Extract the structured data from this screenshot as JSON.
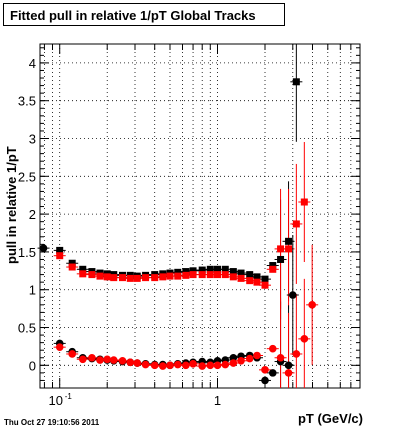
{
  "chart_data": {
    "type": "scatter",
    "title": "Fitted pull in relative 1/pT  Global Tracks",
    "xlabel": "pT (GeV/c)",
    "ylabel": "pull in relative 1/pT",
    "x_scale": "log",
    "xlim": [
      0.075,
      8.0
    ],
    "ylim": [
      -0.3,
      4.25
    ],
    "x_tick_labels": [
      {
        "value": 0.1,
        "base": "10",
        "exp": "-1"
      },
      {
        "value": 1,
        "base": "1",
        "exp": ""
      }
    ],
    "y_tick_labels": [
      "0",
      "0.5",
      "1",
      "1.5",
      "2",
      "2.5",
      "3",
      "3.5",
      "4"
    ],
    "y_ticks": [
      0,
      0.5,
      1,
      1.5,
      2,
      2.5,
      3,
      3.5,
      4
    ],
    "grid": true,
    "series": [
      {
        "marker": "square",
        "color": "#000000",
        "points": [
          [
            0.1,
            1.52
          ],
          [
            0.12,
            1.35
          ],
          [
            0.14,
            1.27
          ],
          [
            0.16,
            1.24
          ],
          [
            0.18,
            1.22
          ],
          [
            0.2,
            1.21
          ],
          [
            0.22,
            1.2
          ],
          [
            0.25,
            1.19
          ],
          [
            0.28,
            1.19
          ],
          [
            0.31,
            1.18
          ],
          [
            0.35,
            1.19
          ],
          [
            0.4,
            1.2
          ],
          [
            0.45,
            1.21
          ],
          [
            0.5,
            1.22
          ],
          [
            0.56,
            1.23
          ],
          [
            0.63,
            1.24
          ],
          [
            0.7,
            1.25
          ],
          [
            0.8,
            1.26
          ],
          [
            0.9,
            1.27
          ],
          [
            1.0,
            1.27
          ],
          [
            1.12,
            1.27
          ],
          [
            1.26,
            1.24
          ],
          [
            1.41,
            1.22
          ],
          [
            1.6,
            1.2
          ],
          [
            1.78,
            1.17
          ],
          [
            2.0,
            1.14
          ],
          [
            2.24,
            1.32
          ],
          [
            2.51,
            1.4
          ],
          [
            2.82,
            1.64
          ],
          [
            3.16,
            3.75
          ]
        ]
      },
      {
        "marker": "square",
        "color": "#ff0000",
        "points": [
          [
            0.1,
            1.45
          ],
          [
            0.12,
            1.3
          ],
          [
            0.14,
            1.21
          ],
          [
            0.16,
            1.2
          ],
          [
            0.18,
            1.18
          ],
          [
            0.2,
            1.17
          ],
          [
            0.22,
            1.16
          ],
          [
            0.25,
            1.16
          ],
          [
            0.28,
            1.15
          ],
          [
            0.31,
            1.15
          ],
          [
            0.35,
            1.16
          ],
          [
            0.4,
            1.16
          ],
          [
            0.45,
            1.17
          ],
          [
            0.5,
            1.18
          ],
          [
            0.56,
            1.18
          ],
          [
            0.63,
            1.19
          ],
          [
            0.7,
            1.2
          ],
          [
            0.8,
            1.2
          ],
          [
            0.9,
            1.2
          ],
          [
            1.0,
            1.2
          ],
          [
            1.12,
            1.2
          ],
          [
            1.26,
            1.17
          ],
          [
            1.41,
            1.15
          ],
          [
            1.6,
            1.12
          ],
          [
            1.78,
            1.1
          ],
          [
            2.0,
            1.06
          ],
          [
            2.24,
            1.27
          ],
          [
            2.51,
            1.54
          ],
          [
            2.82,
            1.54
          ],
          [
            3.16,
            1.87
          ],
          [
            3.55,
            2.16
          ]
        ]
      },
      {
        "marker": "circle",
        "color": "#000000",
        "points": [
          [
            0.079,
            1.55
          ],
          [
            0.1,
            0.29
          ],
          [
            0.12,
            0.18
          ],
          [
            0.14,
            0.1
          ],
          [
            0.16,
            0.09
          ],
          [
            0.18,
            0.08
          ],
          [
            0.2,
            0.07
          ],
          [
            0.22,
            0.06
          ],
          [
            0.25,
            0.05
          ],
          [
            0.28,
            0.04
          ],
          [
            0.31,
            0.03
          ],
          [
            0.35,
            0.02
          ],
          [
            0.4,
            0.01
          ],
          [
            0.45,
            0.01
          ],
          [
            0.5,
            0.0
          ],
          [
            0.56,
            0.02
          ],
          [
            0.63,
            0.03
          ],
          [
            0.7,
            0.04
          ],
          [
            0.8,
            0.05
          ],
          [
            0.9,
            0.04
          ],
          [
            1.0,
            0.06
          ],
          [
            1.12,
            0.07
          ],
          [
            1.26,
            0.1
          ],
          [
            1.41,
            0.12
          ],
          [
            1.6,
            0.13
          ],
          [
            1.78,
            0.1
          ],
          [
            2.0,
            -0.2
          ],
          [
            2.24,
            -0.1
          ],
          [
            2.51,
            0.05
          ],
          [
            2.82,
            0.0
          ],
          [
            3.0,
            0.93
          ]
        ]
      },
      {
        "marker": "circle",
        "color": "#ff0000",
        "points": [
          [
            0.1,
            0.24
          ],
          [
            0.12,
            0.15
          ],
          [
            0.14,
            0.08
          ],
          [
            0.16,
            0.1
          ],
          [
            0.18,
            0.07
          ],
          [
            0.2,
            0.08
          ],
          [
            0.22,
            0.07
          ],
          [
            0.25,
            0.06
          ],
          [
            0.28,
            0.04
          ],
          [
            0.31,
            0.03
          ],
          [
            0.35,
            0.01
          ],
          [
            0.4,
            0.0
          ],
          [
            0.45,
            -0.01
          ],
          [
            0.5,
            0.0
          ],
          [
            0.56,
            0.01
          ],
          [
            0.63,
            0.0
          ],
          [
            0.7,
            0.02
          ],
          [
            0.8,
            -0.01
          ],
          [
            0.9,
            0.0
          ],
          [
            1.0,
            0.0
          ],
          [
            1.12,
            0.01
          ],
          [
            1.26,
            0.03
          ],
          [
            1.41,
            0.06
          ],
          [
            1.6,
            0.09
          ],
          [
            1.78,
            0.13
          ],
          [
            2.0,
            -0.06
          ],
          [
            2.24,
            0.22
          ],
          [
            2.51,
            0.1
          ],
          [
            2.82,
            -0.1
          ],
          [
            3.16,
            0.15
          ],
          [
            3.55,
            0.35
          ],
          [
            3.98,
            0.8
          ]
        ]
      }
    ]
  },
  "footer": {
    "timestamp": "Thu Oct 27 19:10:56 2011"
  }
}
